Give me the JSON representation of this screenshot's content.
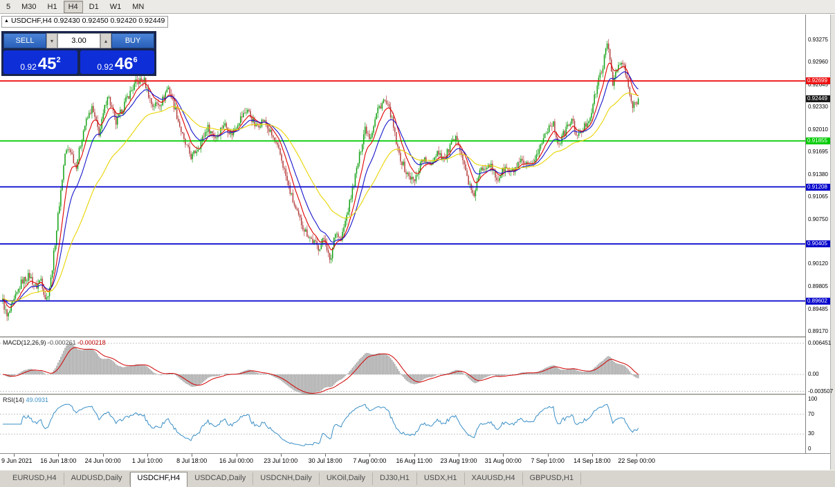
{
  "toolbar": {
    "timeframes": [
      {
        "label": "5",
        "active": false
      },
      {
        "label": "M30",
        "active": false
      },
      {
        "label": "H1",
        "active": false
      },
      {
        "label": "H4",
        "active": true
      },
      {
        "label": "D1",
        "active": false
      },
      {
        "label": "W1",
        "active": false
      },
      {
        "label": "MN",
        "active": false
      }
    ]
  },
  "chart": {
    "symbol_title": "USDCHF,H4",
    "ohlc_text": "0.92430 0.92450 0.92420 0.92449"
  },
  "one_click": {
    "sell_label": "SELL",
    "buy_label": "BUY",
    "volume": "3.00",
    "sell_price": {
      "base": "0.92",
      "big": "45",
      "sup": "2"
    },
    "buy_price": {
      "base": "0.92",
      "big": "46",
      "sup": "6"
    }
  },
  "indicators": {
    "macd": {
      "name": "MACD(12,26,9)",
      "value1": "-0.000261",
      "value2": "-0.000218",
      "scale_labels": [
        "0.006451",
        "0.00",
        "-0.003507"
      ]
    },
    "rsi": {
      "name": "RSI(14)",
      "value": "49.0931",
      "scale_labels": [
        "100",
        "70",
        "30",
        "0"
      ]
    }
  },
  "price_scale": {
    "plain_labels": [
      "0.93275",
      "0.92960",
      "0.92645",
      "0.92330",
      "0.92010",
      "0.91695",
      "0.91380",
      "0.91065",
      "0.90750",
      "0.90120",
      "0.89805",
      "0.89485",
      "0.89170"
    ],
    "current_tag": {
      "label": "0.92449",
      "bg": "#1a1a1a",
      "fg": "#ffffff"
    }
  },
  "time_axis": [
    "9 Jun 2021",
    "16 Jun 18:00",
    "24 Jun 00:00",
    "1 Jul 10:00",
    "8 Jul 18:00",
    "16 Jul 00:00",
    "23 Jul 10:00",
    "30 Jul 18:00",
    "7 Aug 00:00",
    "16 Aug 11:00",
    "23 Aug 19:00",
    "31 Aug 00:00",
    "7 Sep 10:00",
    "14 Sep 18:00",
    "22 Sep 00:00"
  ],
  "tabs": [
    {
      "label": "EURUSD,H4",
      "active": false
    },
    {
      "label": "AUDUSD,Daily",
      "active": false
    },
    {
      "label": "USDCHF,H4",
      "active": true
    },
    {
      "label": "USDCAD,Daily",
      "active": false
    },
    {
      "label": "USDCNH,Daily",
      "active": false
    },
    {
      "label": "UKOil,Daily",
      "active": false
    },
    {
      "label": "DJ30,H1",
      "active": false
    },
    {
      "label": "USDX,H1",
      "active": false
    },
    {
      "label": "XAUUSD,H4",
      "active": false
    },
    {
      "label": "GBPUSD,H1",
      "active": false
    }
  ],
  "chart_data": {
    "type": "candlestick",
    "symbol": "USDCHF",
    "timeframe": "H4",
    "current_price": 0.92449,
    "visible_price_top": 0.93275,
    "visible_price_bottom": 0.8917,
    "candle_count": 450,
    "colors": {
      "candle_up": "#10a010",
      "candle_down": "#b43c3c",
      "ma_fast_red": "#e00000",
      "ma_mid_blue": "#1414cc",
      "ma_slow_yellow": "#e8d400",
      "macd_hist": "#a8a8a8",
      "macd_signal": "#d00000",
      "rsi_line": "#3a8fc7"
    },
    "moving_average_periods": {
      "fast": 9,
      "mid": 18,
      "slow": 48
    },
    "horizontal_lines": [
      {
        "price": 0.92699,
        "label": "0.92699",
        "color": "#ee1111"
      },
      {
        "price": 0.91855,
        "label": "0.91855",
        "color": "#00cc00"
      },
      {
        "price": 0.91208,
        "label": "0.91208",
        "color": "#0000cc"
      },
      {
        "price": 0.90405,
        "label": "0.90405",
        "color": "#0000cc"
      },
      {
        "price": 0.89602,
        "label": "0.89602",
        "color": "#0000cc"
      }
    ],
    "price_path_anchors": [
      [
        0.0,
        0.896
      ],
      [
        0.007,
        0.8936
      ],
      [
        0.017,
        0.8958
      ],
      [
        0.03,
        0.8988
      ],
      [
        0.042,
        0.8996
      ],
      [
        0.052,
        0.8978
      ],
      [
        0.06,
        0.8992
      ],
      [
        0.068,
        0.896
      ],
      [
        0.075,
        0.8985
      ],
      [
        0.082,
        0.904
      ],
      [
        0.09,
        0.9105
      ],
      [
        0.098,
        0.9168
      ],
      [
        0.106,
        0.9175
      ],
      [
        0.115,
        0.9148
      ],
      [
        0.128,
        0.9205
      ],
      [
        0.14,
        0.9232
      ],
      [
        0.152,
        0.9195
      ],
      [
        0.165,
        0.9252
      ],
      [
        0.178,
        0.921
      ],
      [
        0.195,
        0.9245
      ],
      [
        0.21,
        0.9268
      ],
      [
        0.222,
        0.9272
      ],
      [
        0.235,
        0.9235
      ],
      [
        0.25,
        0.924
      ],
      [
        0.26,
        0.9262
      ],
      [
        0.272,
        0.9228
      ],
      [
        0.285,
        0.9185
      ],
      [
        0.297,
        0.9162
      ],
      [
        0.31,
        0.918
      ],
      [
        0.322,
        0.9205
      ],
      [
        0.335,
        0.919
      ],
      [
        0.348,
        0.921
      ],
      [
        0.36,
        0.9195
      ],
      [
        0.372,
        0.9215
      ],
      [
        0.385,
        0.923
      ],
      [
        0.398,
        0.9205
      ],
      [
        0.41,
        0.9215
      ],
      [
        0.425,
        0.919
      ],
      [
        0.437,
        0.9165
      ],
      [
        0.45,
        0.912
      ],
      [
        0.462,
        0.9085
      ],
      [
        0.475,
        0.906
      ],
      [
        0.487,
        0.9045
      ],
      [
        0.497,
        0.9035
      ],
      [
        0.507,
        0.905
      ],
      [
        0.515,
        0.9012
      ],
      [
        0.523,
        0.906
      ],
      [
        0.532,
        0.9045
      ],
      [
        0.545,
        0.9095
      ],
      [
        0.558,
        0.915
      ],
      [
        0.57,
        0.9205
      ],
      [
        0.578,
        0.919
      ],
      [
        0.59,
        0.923
      ],
      [
        0.6,
        0.9243
      ],
      [
        0.61,
        0.9225
      ],
      [
        0.622,
        0.917
      ],
      [
        0.635,
        0.914
      ],
      [
        0.648,
        0.9128
      ],
      [
        0.66,
        0.9162
      ],
      [
        0.672,
        0.915
      ],
      [
        0.684,
        0.9172
      ],
      [
        0.695,
        0.916
      ],
      [
        0.705,
        0.918
      ],
      [
        0.716,
        0.919
      ],
      [
        0.726,
        0.915
      ],
      [
        0.74,
        0.9105
      ],
      [
        0.752,
        0.9145
      ],
      [
        0.765,
        0.9155
      ],
      [
        0.778,
        0.913
      ],
      [
        0.79,
        0.9148
      ],
      [
        0.8,
        0.914
      ],
      [
        0.815,
        0.9155
      ],
      [
        0.83,
        0.9148
      ],
      [
        0.845,
        0.9175
      ],
      [
        0.855,
        0.92
      ],
      [
        0.865,
        0.9212
      ],
      [
        0.875,
        0.918
      ],
      [
        0.885,
        0.92
      ],
      [
        0.895,
        0.9215
      ],
      [
        0.905,
        0.919
      ],
      [
        0.915,
        0.9205
      ],
      [
        0.925,
        0.9222
      ],
      [
        0.935,
        0.9262
      ],
      [
        0.945,
        0.9295
      ],
      [
        0.952,
        0.9325
      ],
      [
        0.96,
        0.9268
      ],
      [
        0.968,
        0.929
      ],
      [
        0.976,
        0.9296
      ],
      [
        0.984,
        0.9262
      ],
      [
        0.991,
        0.9232
      ],
      [
        1.0,
        0.92449
      ]
    ]
  }
}
